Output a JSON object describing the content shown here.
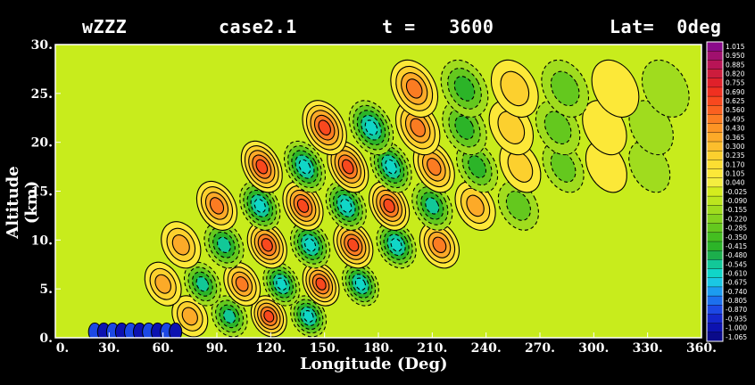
{
  "header": {
    "field": "wZZZ",
    "case": "case2.1",
    "time": "t =   3600",
    "lat": "Lat=  0deg"
  },
  "colors": {
    "background": "#000000",
    "text": "#ffffff",
    "contour_line": "#000000",
    "highlight_contour": "#ffffff"
  },
  "chart_data": {
    "type": "heatmap",
    "subtype": "filled-contour",
    "xlabel": "Longitude (Deg)",
    "ylabel": "Altitude (km)",
    "xlim": [
      0,
      360
    ],
    "ylim": [
      0,
      30
    ],
    "xticks": [
      "0.",
      "30.",
      "60.",
      "90.",
      "120.",
      "150.",
      "180.",
      "210.",
      "240.",
      "270.",
      "300.",
      "330.",
      "360."
    ],
    "yticks": [
      "0.",
      "5.",
      "10.",
      "15.",
      "20.",
      "25.",
      "30."
    ],
    "grid": false,
    "colorbar_position": "right",
    "colorbar_levels": [
      "1.015",
      "0.950",
      "0.885",
      "0.820",
      "0.755",
      "0.690",
      "0.625",
      "0.560",
      "0.495",
      "0.430",
      "0.365",
      "0.300",
      "0.235",
      "0.170",
      "0.105",
      "0.040",
      "-0.025",
      "-0.090",
      "-0.155",
      "-0.220",
      "-0.285",
      "-0.350",
      "-0.415",
      "-0.480",
      "-0.545",
      "-0.610",
      "-0.675",
      "-0.740",
      "-0.805",
      "-0.870",
      "-0.935",
      "-1.000",
      "-1.065"
    ],
    "colorbar_colors": [
      "#8a0a8a",
      "#a0106e",
      "#b81456",
      "#cc1c3c",
      "#e0202a",
      "#f03020",
      "#f8481e",
      "#fa6020",
      "#fb7c22",
      "#fc9424",
      "#fcaa28",
      "#fcbe2c",
      "#fcd02e",
      "#fcde32",
      "#fce838",
      "#f4ee40",
      "#d4ec1e",
      "#bce61e",
      "#a0dc1e",
      "#84d21e",
      "#64c81e",
      "#44be20",
      "#2cb428",
      "#1cae4c",
      "#12c898",
      "#10d6c8",
      "#1ac8e4",
      "#1c9cf0",
      "#1c70ee",
      "#1c48e4",
      "#1426cc",
      "#0c12b0",
      "#0a0a8a"
    ],
    "background_value": 0.0,
    "wave_field": {
      "description": "vertically propagating wave train tilted westward with height",
      "amplitude_max": 0.5,
      "amplitude_min": -0.7
    },
    "colormap_note": "yellow-green near zero, orange/red positive, green/cyan/blue negative"
  }
}
